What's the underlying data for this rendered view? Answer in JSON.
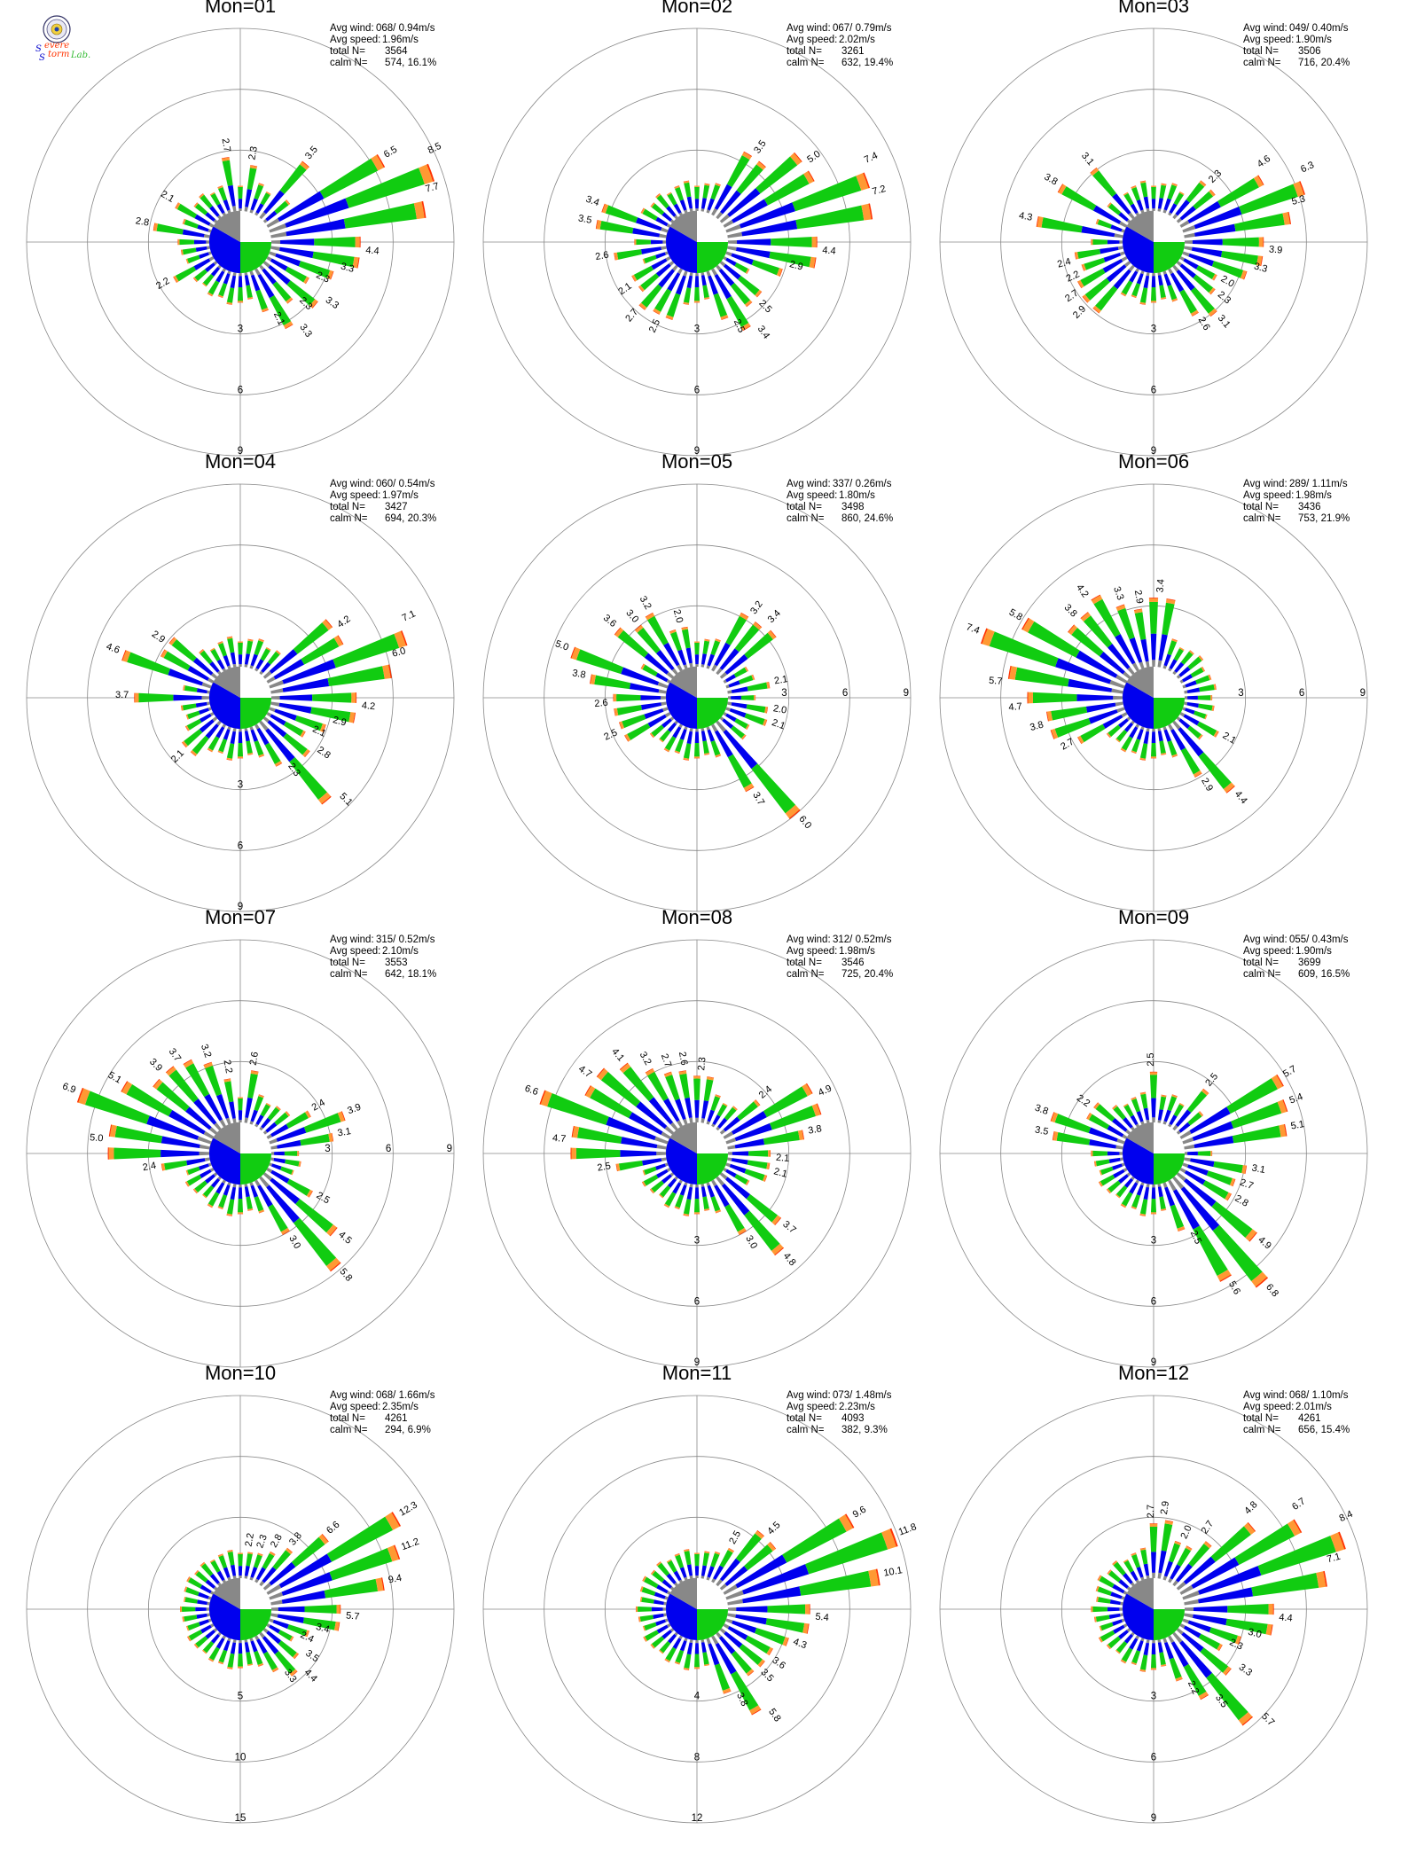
{
  "logo": {
    "letter1": "S",
    "word1": "evere",
    "letter2": "S",
    "word2": "torm",
    "suffix": "Lab."
  },
  "stat_labels": {
    "avg_wind": "Avg wind:",
    "avg_speed": "Avg speed:",
    "total": "total N=",
    "calm": "calm N="
  },
  "colors": {
    "class1": "#888888",
    "class2": "#0000ee",
    "class3": "#11cc11",
    "class4": "#ff9933",
    "class5": "#ff3300",
    "axis": "#888888",
    "calm_gray": "#888888",
    "calm_blue": "#0000ee",
    "calm_green": "#11cc11"
  },
  "chart_data": [
    {
      "type": "polar",
      "title": "Mon=01",
      "stats": {
        "avg_wind": "068/ 0.94m/s",
        "avg_speed": "1.96m/s",
        "total": "3564",
        "calm": "574,  16.1%"
      },
      "ring_labels": [
        "3",
        "6",
        "9"
      ],
      "ring_max": 9,
      "ring_axis": "south",
      "labels": [
        {
          "dir": 350,
          "value": "2.7"
        },
        {
          "dir": 10,
          "value": "2.3"
        },
        {
          "dir": 40,
          "value": "3.5"
        },
        {
          "dir": 60,
          "value": "6.5"
        },
        {
          "dir": 65,
          "value": "8.5"
        },
        {
          "dir": 75,
          "value": "7.7"
        },
        {
          "dir": 95,
          "value": "4.4"
        },
        {
          "dir": 105,
          "value": "3.3"
        },
        {
          "dir": 115,
          "value": "2.3"
        },
        {
          "dir": 125,
          "value": "3.3"
        },
        {
          "dir": 135,
          "value": "2.3"
        },
        {
          "dir": 145,
          "value": "3.3"
        },
        {
          "dir": 155,
          "value": "2.1"
        },
        {
          "dir": 240,
          "value": "2.2"
        },
        {
          "dir": 280,
          "value": "2.8"
        },
        {
          "dir": 300,
          "value": "2.1"
        }
      ]
    },
    {
      "type": "polar",
      "title": "Mon=02",
      "stats": {
        "avg_wind": "067/ 0.79m/s",
        "avg_speed": "2.02m/s",
        "total": "3261",
        "calm": "632,  19.4%"
      },
      "ring_labels": [
        "3",
        "6",
        "9"
      ],
      "ring_max": 9,
      "ring_axis": "south",
      "labels": [
        {
          "dir": 35,
          "value": "3.5"
        },
        {
          "dir": 55,
          "value": "5.0"
        },
        {
          "dir": 65,
          "value": "7.4"
        },
        {
          "dir": 75,
          "value": "7.2"
        },
        {
          "dir": 95,
          "value": "4.4"
        },
        {
          "dir": 105,
          "value": "2.9"
        },
        {
          "dir": 135,
          "value": "2.5"
        },
        {
          "dir": 145,
          "value": "3.4"
        },
        {
          "dir": 155,
          "value": "2.5"
        },
        {
          "dir": 205,
          "value": "2.5"
        },
        {
          "dir": 220,
          "value": "2.7"
        },
        {
          "dir": 235,
          "value": "2.1"
        },
        {
          "dir": 260,
          "value": "2.6"
        },
        {
          "dir": 280,
          "value": "3.5"
        },
        {
          "dir": 290,
          "value": "3.4"
        }
      ]
    },
    {
      "type": "polar",
      "title": "Mon=03",
      "stats": {
        "avg_wind": "049/ 0.40m/s",
        "avg_speed": "1.90m/s",
        "total": "3506",
        "calm": "716,  20.4%"
      },
      "ring_labels": [
        "3",
        "6",
        "9"
      ],
      "ring_max": 9,
      "ring_axis": "south",
      "labels": [
        {
          "dir": 45,
          "value": "2.3"
        },
        {
          "dir": 55,
          "value": "4.6"
        },
        {
          "dir": 65,
          "value": "6.3"
        },
        {
          "dir": 75,
          "value": "5.3"
        },
        {
          "dir": 95,
          "value": "3.9"
        },
        {
          "dir": 105,
          "value": "3.3"
        },
        {
          "dir": 120,
          "value": "2.0"
        },
        {
          "dir": 130,
          "value": "2.3"
        },
        {
          "dir": 140,
          "value": "3.1"
        },
        {
          "dir": 150,
          "value": "2.6"
        },
        {
          "dir": 225,
          "value": "2.9"
        },
        {
          "dir": 235,
          "value": "2.7"
        },
        {
          "dir": 245,
          "value": "2.2"
        },
        {
          "dir": 255,
          "value": "2.4"
        },
        {
          "dir": 280,
          "value": "4.3"
        },
        {
          "dir": 300,
          "value": "3.8"
        },
        {
          "dir": 320,
          "value": "3.1"
        }
      ]
    },
    {
      "type": "polar",
      "title": "Mon=04",
      "stats": {
        "avg_wind": "060/ 0.54m/s",
        "avg_speed": "1.97m/s",
        "total": "3427",
        "calm": "694,  20.3%"
      },
      "ring_labels": [
        "3",
        "6",
        "9"
      ],
      "ring_max": 9,
      "ring_axis": "south",
      "labels": [
        {
          "dir": 55,
          "value": "4.2"
        },
        {
          "dir": 65,
          "value": "7.1"
        },
        {
          "dir": 75,
          "value": "6.0"
        },
        {
          "dir": 95,
          "value": "4.2"
        },
        {
          "dir": 105,
          "value": "2.9"
        },
        {
          "dir": 115,
          "value": "2.1"
        },
        {
          "dir": 125,
          "value": "2.8"
        },
        {
          "dir": 135,
          "value": "5.1"
        },
        {
          "dir": 145,
          "value": "2.3"
        },
        {
          "dir": 225,
          "value": "2.1"
        },
        {
          "dir": 270,
          "value": "3.7"
        },
        {
          "dir": 290,
          "value": "4.6"
        },
        {
          "dir": 305,
          "value": "2.9"
        }
      ]
    },
    {
      "type": "polar",
      "title": "Mon=05",
      "stats": {
        "avg_wind": "337/ 0.26m/s",
        "avg_speed": "1.80m/s",
        "total": "3498",
        "calm": "860,  24.6%"
      },
      "ring_labels": [
        "3",
        "6",
        "9"
      ],
      "ring_max": 9,
      "ring_axis": "east",
      "labels": [
        {
          "dir": 35,
          "value": "3.2"
        },
        {
          "dir": 45,
          "value": "3.4"
        },
        {
          "dir": 80,
          "value": "2.1"
        },
        {
          "dir": 100,
          "value": "2.0"
        },
        {
          "dir": 110,
          "value": "2.1"
        },
        {
          "dir": 140,
          "value": "6.0"
        },
        {
          "dir": 150,
          "value": "3.7"
        },
        {
          "dir": 245,
          "value": "2.5"
        },
        {
          "dir": 265,
          "value": "2.6"
        },
        {
          "dir": 280,
          "value": "3.8"
        },
        {
          "dir": 290,
          "value": "5.0"
        },
        {
          "dir": 310,
          "value": "3.6"
        },
        {
          "dir": 320,
          "value": "3.0"
        },
        {
          "dir": 330,
          "value": "3.2"
        },
        {
          "dir": 345,
          "value": "2.0"
        }
      ]
    },
    {
      "type": "polar",
      "title": "Mon=06",
      "stats": {
        "avg_wind": "289/ 1.11m/s",
        "avg_speed": "1.98m/s",
        "total": "3436",
        "calm": "753,  21.9%"
      },
      "ring_labels": [
        "3",
        "6",
        "9"
      ],
      "ring_max": 9,
      "ring_axis": "east",
      "labels": [
        {
          "dir": 5,
          "value": "3.4"
        },
        {
          "dir": 120,
          "value": "2.1"
        },
        {
          "dir": 140,
          "value": "4.4"
        },
        {
          "dir": 150,
          "value": "2.9"
        },
        {
          "dir": 240,
          "value": "2.7"
        },
        {
          "dir": 255,
          "value": "3.8"
        },
        {
          "dir": 265,
          "value": "4.7"
        },
        {
          "dir": 275,
          "value": "5.7"
        },
        {
          "dir": 290,
          "value": "7.4"
        },
        {
          "dir": 300,
          "value": "5.8"
        },
        {
          "dir": 315,
          "value": "3.8"
        },
        {
          "dir": 325,
          "value": "4.2"
        },
        {
          "dir": 340,
          "value": "3.3"
        },
        {
          "dir": 350,
          "value": "2.9"
        }
      ]
    },
    {
      "type": "polar",
      "title": "Mon=07",
      "stats": {
        "avg_wind": "315/ 0.52m/s",
        "avg_speed": "2.10m/s",
        "total": "3553",
        "calm": "642,  18.1%"
      },
      "ring_labels": [
        "3",
        "6",
        "9"
      ],
      "ring_max": 9,
      "ring_axis": "east",
      "labels": [
        {
          "dir": 10,
          "value": "2.6"
        },
        {
          "dir": 60,
          "value": "2.4"
        },
        {
          "dir": 70,
          "value": "3.9"
        },
        {
          "dir": 80,
          "value": "3.1"
        },
        {
          "dir": 120,
          "value": "2.5"
        },
        {
          "dir": 130,
          "value": "4.5"
        },
        {
          "dir": 140,
          "value": "5.8"
        },
        {
          "dir": 150,
          "value": "3.0"
        },
        {
          "dir": 260,
          "value": "2.4"
        },
        {
          "dir": 275,
          "value": "5.0"
        },
        {
          "dir": 290,
          "value": "6.9"
        },
        {
          "dir": 300,
          "value": "5.1"
        },
        {
          "dir": 315,
          "value": "3.9"
        },
        {
          "dir": 325,
          "value": "3.7"
        },
        {
          "dir": 340,
          "value": "3.2"
        },
        {
          "dir": 350,
          "value": "2.2"
        }
      ]
    },
    {
      "type": "polar",
      "title": "Mon=08",
      "stats": {
        "avg_wind": "312/ 0.52m/s",
        "avg_speed": "1.98m/s",
        "total": "3546",
        "calm": "725,  20.4%"
      },
      "ring_labels": [
        "3",
        "6",
        "9"
      ],
      "ring_max": 9,
      "ring_axis": "south",
      "labels": [
        {
          "dir": 5,
          "value": "2.3"
        },
        {
          "dir": 50,
          "value": "2.4"
        },
        {
          "dir": 65,
          "value": "4.9"
        },
        {
          "dir": 80,
          "value": "3.8"
        },
        {
          "dir": 95,
          "value": "2.1"
        },
        {
          "dir": 105,
          "value": "2.1"
        },
        {
          "dir": 130,
          "value": "3.7"
        },
        {
          "dir": 140,
          "value": "4.8"
        },
        {
          "dir": 150,
          "value": "3.0"
        },
        {
          "dir": 260,
          "value": "2.5"
        },
        {
          "dir": 275,
          "value": "4.7"
        },
        {
          "dir": 290,
          "value": "6.6"
        },
        {
          "dir": 305,
          "value": "4.7"
        },
        {
          "dir": 320,
          "value": "4.1"
        },
        {
          "dir": 330,
          "value": "3.2"
        },
        {
          "dir": 340,
          "value": "2.7"
        },
        {
          "dir": 350,
          "value": "2.6"
        }
      ]
    },
    {
      "type": "polar",
      "title": "Mon=09",
      "stats": {
        "avg_wind": "055/ 0.43m/s",
        "avg_speed": "1.90m/s",
        "total": "3699",
        "calm": "609,  16.5%"
      },
      "ring_labels": [
        "3",
        "6",
        "9"
      ],
      "ring_max": 9,
      "ring_axis": "south",
      "labels": [
        {
          "dir": 0,
          "value": "2.5"
        },
        {
          "dir": 40,
          "value": "2.5"
        },
        {
          "dir": 60,
          "value": "5.7"
        },
        {
          "dir": 70,
          "value": "5.4"
        },
        {
          "dir": 80,
          "value": "5.1"
        },
        {
          "dir": 100,
          "value": "3.1"
        },
        {
          "dir": 110,
          "value": "2.7"
        },
        {
          "dir": 120,
          "value": "2.8"
        },
        {
          "dir": 130,
          "value": "4.9"
        },
        {
          "dir": 140,
          "value": "6.8"
        },
        {
          "dir": 150,
          "value": "5.6"
        },
        {
          "dir": 155,
          "value": "2.5"
        },
        {
          "dir": 280,
          "value": "3.5"
        },
        {
          "dir": 290,
          "value": "3.8"
        },
        {
          "dir": 305,
          "value": "2.2"
        }
      ]
    },
    {
      "type": "polar",
      "title": "Mon=10",
      "stats": {
        "avg_wind": "068/ 1.66m/s",
        "avg_speed": "2.35m/s",
        "total": "4261",
        "calm": "294,   6.9%"
      },
      "ring_labels": [
        "5",
        "10",
        "15"
      ],
      "ring_max": 15,
      "ring_axis": "south",
      "labels": [
        {
          "dir": 10,
          "value": "2.2"
        },
        {
          "dir": 20,
          "value": "2.3"
        },
        {
          "dir": 30,
          "value": "2.8"
        },
        {
          "dir": 40,
          "value": "3.8"
        },
        {
          "dir": 50,
          "value": "6.6"
        },
        {
          "dir": 60,
          "value": "12.3"
        },
        {
          "dir": 70,
          "value": "11.2"
        },
        {
          "dir": 80,
          "value": "9.4"
        },
        {
          "dir": 95,
          "value": "5.7"
        },
        {
          "dir": 105,
          "value": "3.4"
        },
        {
          "dir": 115,
          "value": "2.4"
        },
        {
          "dir": 125,
          "value": "3.5"
        },
        {
          "dir": 135,
          "value": "4.4"
        },
        {
          "dir": 145,
          "value": "3.3"
        }
      ]
    },
    {
      "type": "polar",
      "title": "Mon=11",
      "stats": {
        "avg_wind": "073/ 1.48m/s",
        "avg_speed": "2.23m/s",
        "total": "4093",
        "calm": "382,   9.3%"
      },
      "ring_labels": [
        "4",
        "8",
        "12"
      ],
      "ring_max": 12,
      "ring_axis": "south",
      "labels": [
        {
          "dir": 30,
          "value": "2.5"
        },
        {
          "dir": 45,
          "value": "4.5"
        },
        {
          "dir": 60,
          "value": "9.6"
        },
        {
          "dir": 70,
          "value": "11.8"
        },
        {
          "dir": 80,
          "value": "10.1"
        },
        {
          "dir": 95,
          "value": "5.4"
        },
        {
          "dir": 110,
          "value": "4.3"
        },
        {
          "dir": 125,
          "value": "3.6"
        },
        {
          "dir": 135,
          "value": "3.5"
        },
        {
          "dir": 145,
          "value": "5.8"
        },
        {
          "dir": 155,
          "value": "3.8"
        }
      ]
    },
    {
      "type": "polar",
      "title": "Mon=12",
      "stats": {
        "avg_wind": "068/ 1.10m/s",
        "avg_speed": "2.01m/s",
        "total": "4261",
        "calm": "656,  15.4%"
      },
      "ring_labels": [
        "3",
        "6",
        "9"
      ],
      "ring_max": 9,
      "ring_axis": "south",
      "labels": [
        {
          "dir": 0,
          "value": "2.7"
        },
        {
          "dir": 8,
          "value": "2.9"
        },
        {
          "dir": 25,
          "value": "2.0"
        },
        {
          "dir": 35,
          "value": "2.7"
        },
        {
          "dir": 45,
          "value": "4.8"
        },
        {
          "dir": 55,
          "value": "6.7"
        },
        {
          "dir": 65,
          "value": "8.4"
        },
        {
          "dir": 75,
          "value": "7.1"
        },
        {
          "dir": 95,
          "value": "4.4"
        },
        {
          "dir": 105,
          "value": "3.0"
        },
        {
          "dir": 115,
          "value": "2.3"
        },
        {
          "dir": 125,
          "value": "3.3"
        },
        {
          "dir": 135,
          "value": "5.7"
        },
        {
          "dir": 145,
          "value": "3.5"
        },
        {
          "dir": 155,
          "value": "2.2"
        }
      ]
    }
  ]
}
